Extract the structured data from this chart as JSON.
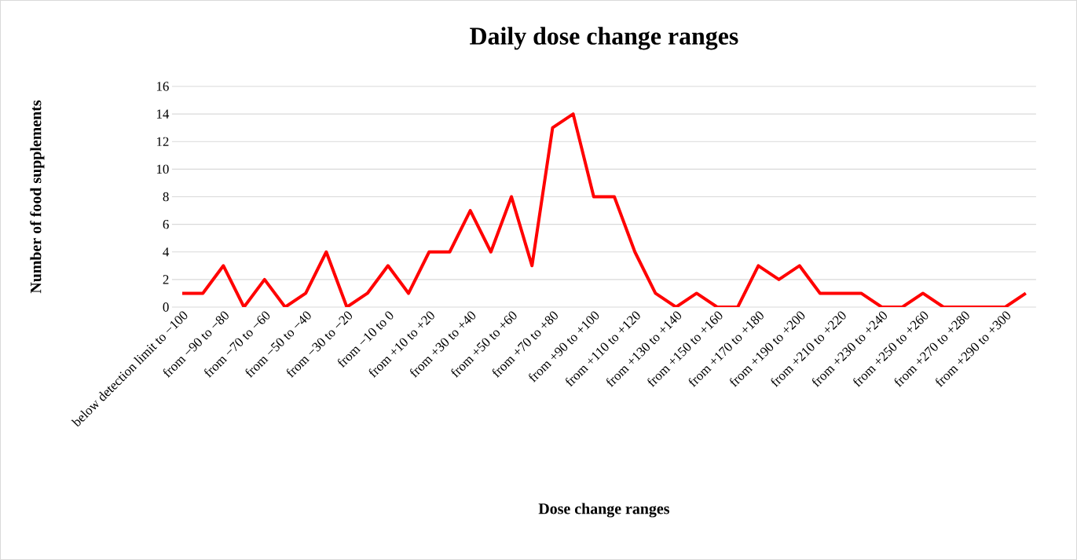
{
  "chart_data": {
    "type": "line",
    "title": "Daily dose change ranges",
    "xlabel": "Dose change ranges",
    "ylabel": "Number of food supplements",
    "categories": [
      "below detection limit to −100",
      null,
      "from −90 to −80",
      null,
      "from −70 to −60",
      null,
      "from −50 to −40",
      null,
      "from −30 to −20",
      null,
      "from −10 to 0",
      null,
      "from +10 to +20",
      null,
      "from +30 to +40",
      null,
      "from +50 to +60",
      null,
      "from +70 to +80",
      null,
      "from +90 to +100",
      null,
      "from +110 to +120",
      null,
      "from +130 to +140",
      null,
      "from +150 to +160",
      null,
      "from +170 to +180",
      null,
      "from +190 to +200",
      null,
      "from +210 to +220",
      null,
      "from +230 to +240",
      null,
      "from +250 to +260",
      null,
      "from +270 to +280",
      null,
      "from +290 to +300",
      null
    ],
    "series": [
      {
        "color": "#ff0000",
        "values": [
          1,
          1,
          3,
          0,
          2,
          0,
          1,
          4,
          0,
          1,
          3,
          1,
          4,
          4,
          7,
          4,
          8,
          3,
          13,
          14,
          8,
          8,
          4,
          1,
          0,
          1,
          0,
          0,
          3,
          2,
          3,
          1,
          1,
          1,
          0,
          0,
          1,
          0,
          0,
          0,
          0,
          1
        ]
      }
    ],
    "ylim": [
      0,
      16
    ],
    "yticks": [
      0,
      2,
      4,
      6,
      8,
      10,
      12,
      14,
      16
    ],
    "grid": "y",
    "marker": "none",
    "line_style": "solid"
  }
}
